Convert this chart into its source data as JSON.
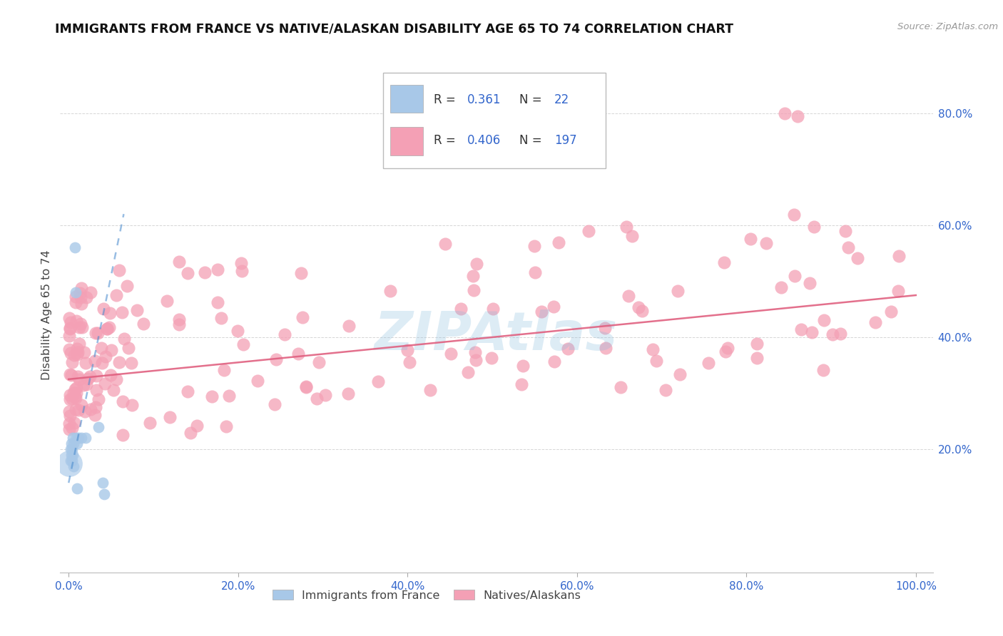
{
  "title": "IMMIGRANTS FROM FRANCE VS NATIVE/ALASKAN DISABILITY AGE 65 TO 74 CORRELATION CHART",
  "source": "Source: ZipAtlas.com",
  "ylabel": "Disability Age 65 to 74",
  "xlim": [
    -0.01,
    1.02
  ],
  "ylim": [
    -0.02,
    0.9
  ],
  "xtick_vals": [
    0.0,
    0.2,
    0.4,
    0.6,
    0.8,
    1.0
  ],
  "xticklabels": [
    "0.0%",
    "20.0%",
    "40.0%",
    "60.0%",
    "80.0%",
    "100.0%"
  ],
  "ytick_vals": [
    0.2,
    0.4,
    0.6,
    0.8
  ],
  "yticklabels": [
    "20.0%",
    "40.0%",
    "60.0%",
    "80.0%"
  ],
  "blue_R": 0.361,
  "blue_N": 22,
  "pink_R": 0.406,
  "pink_N": 197,
  "blue_color": "#a8c8e8",
  "pink_color": "#f4a0b5",
  "blue_line_color": "#4488cc",
  "pink_line_color": "#e06080",
  "blue_scatter_x": [
    0.001,
    0.002,
    0.002,
    0.003,
    0.003,
    0.004,
    0.004,
    0.005,
    0.005,
    0.006,
    0.006,
    0.007,
    0.008,
    0.009,
    0.01,
    0.01,
    0.012,
    0.015,
    0.02,
    0.035,
    0.04,
    0.042
  ],
  "blue_scatter_y": [
    0.175,
    0.2,
    0.18,
    0.19,
    0.21,
    0.2,
    0.18,
    0.22,
    0.19,
    0.21,
    0.17,
    0.56,
    0.48,
    0.22,
    0.13,
    0.21,
    0.22,
    0.22,
    0.22,
    0.24,
    0.14,
    0.12
  ],
  "blue_big_x": [
    0.001
  ],
  "blue_big_y": [
    0.175
  ],
  "blue_trend_x": [
    0.0,
    0.065
  ],
  "blue_trend_y": [
    0.14,
    0.62
  ],
  "pink_trend_x": [
    0.0,
    1.0
  ],
  "pink_trend_y": [
    0.325,
    0.475
  ],
  "watermark": "ZIPAtlas",
  "background_color": "#ffffff",
  "grid_color": "#cccccc"
}
